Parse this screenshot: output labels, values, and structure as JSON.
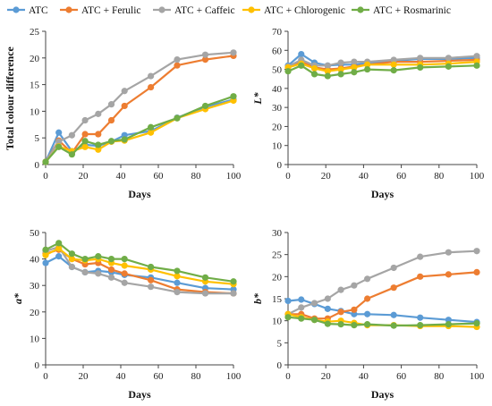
{
  "legend": [
    "ATC",
    "ATC + Ferulic",
    "ATC + Caffeic",
    "ATC + Chlorogenic",
    "ATC + Rosmarinic"
  ],
  "colors": {
    "ATC": "#5b9bd5",
    "ATC + Ferulic": "#ed7d31",
    "ATC + Caffeic": "#a5a5a5",
    "ATC + Chlorogenic": "#ffc000",
    "ATC + Rosmarinic": "#70ad47"
  },
  "chart_data": [
    {
      "type": "line",
      "panel": "top-left",
      "ylabel": "Total colour difference",
      "xlabel": "Days",
      "xlim": [
        0,
        100
      ],
      "ylim": [
        0,
        25
      ],
      "xticks": [
        0,
        20,
        40,
        60,
        80,
        100
      ],
      "yticks": [
        0,
        5,
        10,
        15,
        20,
        25
      ],
      "x": [
        0,
        7,
        14,
        21,
        28,
        35,
        42,
        56,
        70,
        85,
        100
      ],
      "series": [
        {
          "name": "ATC",
          "values": [
            0.5,
            6.0,
            2.5,
            3.7,
            3.5,
            4.3,
            5.5,
            6.3,
            8.8,
            10.8,
            12.2
          ]
        },
        {
          "name": "ATC + Ferulic",
          "values": [
            0.5,
            4.5,
            2.2,
            5.7,
            5.7,
            8.3,
            11.0,
            14.5,
            18.6,
            19.7,
            20.4
          ]
        },
        {
          "name": "ATC + Caffeic",
          "values": [
            0.5,
            4.3,
            5.5,
            8.3,
            9.5,
            11.3,
            13.8,
            16.6,
            19.7,
            20.6,
            21.0
          ]
        },
        {
          "name": "ATC + Chlorogenic",
          "values": [
            0.5,
            3.4,
            2.5,
            3.3,
            2.8,
            4.3,
            4.5,
            6.0,
            8.7,
            10.4,
            12.0
          ]
        },
        {
          "name": "ATC + Rosmarinic",
          "values": [
            0.5,
            3.3,
            1.9,
            4.4,
            3.7,
            4.4,
            4.7,
            7.0,
            8.7,
            11.0,
            12.8
          ]
        }
      ]
    },
    {
      "type": "line",
      "panel": "top-right",
      "ylabel": "L*",
      "xlabel": "Days",
      "xlim": [
        0,
        100
      ],
      "ylim": [
        0,
        70
      ],
      "xticks": [
        0,
        20,
        40,
        60,
        80,
        100
      ],
      "yticks": [
        0,
        10,
        20,
        30,
        40,
        50,
        60,
        70
      ],
      "x": [
        0,
        7,
        14,
        21,
        28,
        35,
        42,
        56,
        70,
        85,
        100
      ],
      "series": [
        {
          "name": "ATC",
          "values": [
            52,
            58,
            53.5,
            52,
            52.5,
            52.5,
            53.5,
            54.5,
            55.5,
            55.5,
            56
          ]
        },
        {
          "name": "ATC + Ferulic",
          "values": [
            51,
            54,
            51,
            50,
            50.5,
            51.5,
            52.5,
            54,
            54,
            54.5,
            55
          ]
        },
        {
          "name": "ATC + Caffeic",
          "values": [
            51.5,
            55,
            52,
            52,
            53.5,
            54,
            54,
            55,
            56,
            56,
            57
          ]
        },
        {
          "name": "ATC + Chlorogenic",
          "values": [
            51,
            53,
            50.5,
            49,
            50,
            51,
            52.5,
            52.5,
            52.5,
            53,
            54
          ]
        },
        {
          "name": "ATC + Rosmarinic",
          "values": [
            49,
            52,
            47.5,
            46.5,
            47.5,
            48.5,
            50,
            49.5,
            51,
            51.5,
            52
          ]
        }
      ]
    },
    {
      "type": "line",
      "panel": "bottom-left",
      "ylabel": "a*",
      "xlabel": "Days",
      "xlim": [
        0,
        100
      ],
      "ylim": [
        0,
        50
      ],
      "xticks": [
        0,
        20,
        40,
        60,
        80,
        100
      ],
      "yticks": [
        0,
        10,
        20,
        30,
        40,
        50
      ],
      "x": [
        0,
        7,
        14,
        21,
        28,
        35,
        42,
        56,
        70,
        85,
        100
      ],
      "series": [
        {
          "name": "ATC",
          "values": [
            38.5,
            41,
            37,
            35,
            35.5,
            35,
            34,
            33,
            31,
            29,
            28.5
          ]
        },
        {
          "name": "ATC + Ferulic",
          "values": [
            42,
            43.5,
            40,
            38,
            38.5,
            36,
            34.5,
            32,
            28.5,
            27.5,
            27
          ]
        },
        {
          "name": "ATC + Caffeic",
          "values": [
            43,
            44.5,
            37,
            35,
            34.5,
            33,
            31,
            29.5,
            27.5,
            27,
            27
          ]
        },
        {
          "name": "ATC + Chlorogenic",
          "values": [
            41.5,
            44,
            40,
            39.5,
            40,
            38.5,
            37.5,
            36,
            33.5,
            31.5,
            30.5
          ]
        },
        {
          "name": "ATC + Rosmarinic",
          "values": [
            43.5,
            46,
            42,
            40,
            41,
            40,
            40,
            37,
            35.5,
            33,
            31.5
          ]
        }
      ]
    },
    {
      "type": "line",
      "panel": "bottom-right",
      "ylabel": "b*",
      "xlabel": "Days",
      "xlim": [
        0,
        100
      ],
      "ylim": [
        0,
        30
      ],
      "xticks": [
        0,
        20,
        40,
        60,
        80,
        100
      ],
      "yticks": [
        0,
        5,
        10,
        15,
        20,
        25,
        30
      ],
      "x": [
        0,
        7,
        14,
        21,
        28,
        35,
        42,
        56,
        70,
        85,
        100
      ],
      "series": [
        {
          "name": "ATC",
          "values": [
            14.5,
            14.8,
            13.8,
            12.7,
            12.2,
            11.5,
            11.5,
            11.3,
            10.7,
            10.2,
            9.7
          ]
        },
        {
          "name": "ATC + Ferulic",
          "values": [
            11.5,
            11.5,
            10.5,
            10.5,
            12.0,
            12.5,
            15.0,
            17.5,
            20.0,
            20.5,
            21.0
          ]
        },
        {
          "name": "ATC + Caffeic",
          "values": [
            11.5,
            13.0,
            14.0,
            15.0,
            17.0,
            18.0,
            19.5,
            22.0,
            24.5,
            25.5,
            25.8
          ]
        },
        {
          "name": "ATC + Chlorogenic",
          "values": [
            11.5,
            10.8,
            10.2,
            9.8,
            10.0,
            9.5,
            9.0,
            9.0,
            8.8,
            8.8,
            8.6
          ]
        },
        {
          "name": "ATC + Rosmarinic",
          "values": [
            10.8,
            10.5,
            10.2,
            9.3,
            9.2,
            9.0,
            9.2,
            8.9,
            9.0,
            9.2,
            9.4
          ]
        }
      ]
    }
  ]
}
